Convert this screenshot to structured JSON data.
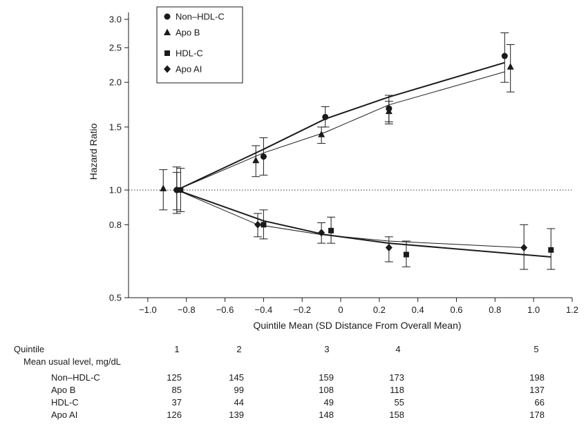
{
  "chart_data": {
    "type": "scatter",
    "title": "",
    "xlabel": "Quintile Mean (SD Distance From Overall Mean)",
    "ylabel": "Hazard Ratio",
    "xlim": [
      -1.1,
      1.2
    ],
    "ylim": [
      0.5,
      3.0
    ],
    "yscale": "log",
    "x_ticks": [
      "-1.0",
      "-0.8",
      "-0.6",
      "-0.4",
      "-0.2",
      "0",
      "0.2",
      "0.4",
      "0.6",
      "0.8",
      "1.0",
      "1.2"
    ],
    "y_ticks": [
      "0.5",
      "0.8",
      "1.0",
      "1.5",
      "2.0",
      "2.5",
      "3.0"
    ],
    "x_tick_values": [
      -1.0,
      -0.8,
      -0.6,
      -0.4,
      -0.2,
      0,
      0.2,
      0.4,
      0.6,
      0.8,
      1.0,
      1.2
    ],
    "y_tick_values": [
      0.5,
      0.8,
      1.0,
      1.5,
      2.0,
      2.5,
      3.0
    ],
    "reference_line": 1.0,
    "legend_position": "top-left",
    "series": [
      {
        "name": "Non–HDL-C",
        "marker": "circle",
        "x": [
          -0.85,
          -0.4,
          -0.08,
          0.25,
          0.85
        ],
        "y": [
          1.0,
          1.24,
          1.6,
          1.69,
          2.37
        ],
        "lower": [
          0.86,
          1.1,
          1.5,
          1.55,
          2.0
        ],
        "upper": [
          1.16,
          1.4,
          1.71,
          1.84,
          2.75
        ],
        "fit_x": [
          -0.85,
          -0.4,
          -0.08,
          0.25,
          0.85
        ],
        "fit_y": [
          1.0,
          1.3,
          1.58,
          1.82,
          2.27
        ]
      },
      {
        "name": "Apo B",
        "marker": "triangle",
        "x": [
          -0.92,
          -0.44,
          -0.1,
          0.25,
          0.88
        ],
        "y": [
          1.01,
          1.21,
          1.43,
          1.66,
          2.21
        ],
        "lower": [
          0.88,
          1.09,
          1.35,
          1.53,
          1.88
        ],
        "upper": [
          1.14,
          1.33,
          1.5,
          1.77,
          2.55
        ],
        "fit_x": [
          -0.85,
          -0.4,
          -0.08,
          0.25,
          0.85
        ],
        "fit_y": [
          1.0,
          1.27,
          1.45,
          1.73,
          2.14
        ]
      },
      {
        "name": "HDL-C",
        "marker": "square",
        "x": [
          -0.83,
          -0.4,
          -0.05,
          0.34,
          1.09
        ],
        "y": [
          1.0,
          0.8,
          0.77,
          0.66,
          0.68
        ],
        "lower": [
          0.87,
          0.73,
          0.71,
          0.61,
          0.6
        ],
        "upper": [
          1.15,
          0.88,
          0.84,
          0.72,
          0.78
        ],
        "fit_x": [
          -0.85,
          -0.4,
          -0.08,
          0.25,
          1.09
        ],
        "fit_y": [
          1.0,
          0.82,
          0.75,
          0.71,
          0.65
        ]
      },
      {
        "name": "Apo AI",
        "marker": "diamond",
        "x": [
          -0.85,
          -0.43,
          -0.1,
          0.25,
          0.95
        ],
        "y": [
          1.0,
          0.8,
          0.76,
          0.69,
          0.69
        ],
        "lower": [
          0.88,
          0.74,
          0.71,
          0.63,
          0.6
        ],
        "upper": [
          1.12,
          0.86,
          0.81,
          0.74,
          0.8
        ],
        "fit_x": [
          -0.85,
          -0.43,
          -0.1,
          0.25,
          0.95
        ],
        "fit_y": [
          1.0,
          0.8,
          0.75,
          0.72,
          0.69
        ]
      }
    ]
  },
  "table": {
    "header_label": "Quintile",
    "quintiles": [
      "1",
      "2",
      "3",
      "4",
      "5"
    ],
    "subheader": "Mean usual level, mg/dL",
    "rows": [
      {
        "label": "Non–HDL-C",
        "values": [
          "125",
          "145",
          "159",
          "173",
          "198"
        ]
      },
      {
        "label": "Apo B",
        "values": [
          "85",
          "99",
          "108",
          "118",
          "137"
        ]
      },
      {
        "label": "HDL-C",
        "values": [
          "37",
          "44",
          "49",
          "55",
          "66"
        ]
      },
      {
        "label": "Apo AI",
        "values": [
          "126",
          "139",
          "148",
          "158",
          "178"
        ]
      }
    ]
  }
}
